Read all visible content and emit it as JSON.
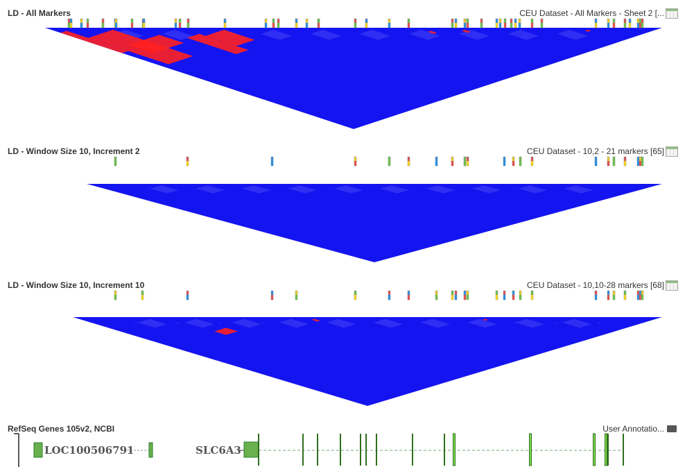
{
  "panels": [
    {
      "title": "LD - All Markers",
      "dataset": "CEU Dataset - All Markers - Sheet 2 [..."
    },
    {
      "title": "LD - Window Size 10, Increment 2",
      "dataset": "CEU Dataset - 10,2 - 21 markers [65]"
    },
    {
      "title": "LD - Window Size 10, Increment 10",
      "dataset": "CEU Dataset - 10,10-28 markers [68]"
    }
  ],
  "genes": {
    "title": "RefSeq Genes 105v2, NCBI",
    "annotations": "User Annotatio...",
    "gene1": "LOC100506791",
    "gene2": "SLC6A3"
  },
  "colors": {
    "ld_high": "#ff2020",
    "ld_low": "#1414f0"
  }
}
